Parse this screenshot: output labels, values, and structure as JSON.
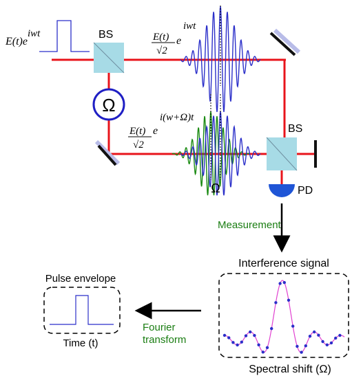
{
  "labels": {
    "bs1": "BS",
    "bs2": "BS",
    "pd": "PD",
    "omega_symbol": "Ω",
    "omega_marker": "Ω",
    "measurement": "Measurement",
    "interference_signal": "Interference signal",
    "spectral_shift": "Spectral shift (Ω)",
    "pulse_envelope": "Pulse envelope",
    "time_axis": "Time (t)",
    "fourier_line1": "Fourier",
    "fourier_line2": "transform"
  },
  "formulas": {
    "input_base": "E(t)e",
    "input_exp": "iwt",
    "upper_num": "E(t)",
    "upper_den": "√2",
    "upper_exp_base": "e",
    "upper_exp": "iwt",
    "lower_num": "E(t)",
    "lower_den": "√2",
    "lower_exp_base": "e",
    "lower_exp": "i(w+Ω)t"
  },
  "colors": {
    "beam": "#e8141b",
    "wave_blue": "#2b2fc9",
    "wave_green": "#1a8a12",
    "measurement_text": "#1a7d12",
    "phase_circle": "#1f1fc4",
    "detector": "#1f55d6",
    "splitter": "#a7dbe6",
    "mirror_back": "#b8bce8",
    "fit_curve": "#e040d0",
    "dots": "#2b2fc9"
  },
  "icons": [
    "beam-splitter-icon",
    "mirror-icon",
    "photodetector-icon",
    "phase-shifter-icon",
    "arrow-down-icon",
    "arrow-left-icon"
  ]
}
